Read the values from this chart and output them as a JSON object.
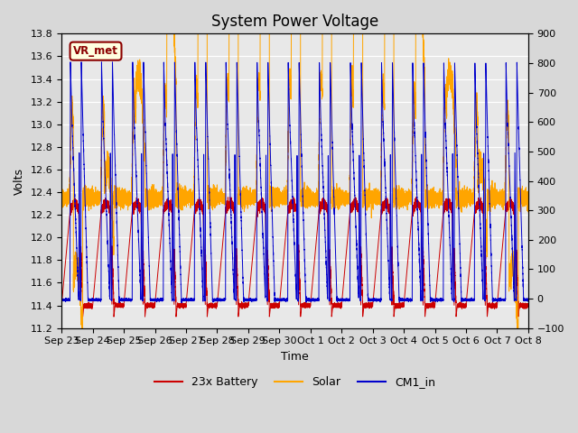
{
  "title": "System Power Voltage",
  "xlabel": "Time",
  "ylabel_left": "Volts",
  "ylim_left": [
    11.2,
    13.8
  ],
  "ylim_right": [
    -100,
    900
  ],
  "yticks_left": [
    11.2,
    11.4,
    11.6,
    11.8,
    12.0,
    12.2,
    12.4,
    12.6,
    12.8,
    13.0,
    13.2,
    13.4,
    13.6,
    13.8
  ],
  "yticks_right": [
    -100,
    0,
    100,
    200,
    300,
    400,
    500,
    600,
    700,
    800,
    900
  ],
  "xtick_labels": [
    "Sep 23",
    "Sep 24",
    "Sep 25",
    "Sep 26",
    "Sep 27",
    "Sep 28",
    "Sep 29",
    "Sep 30",
    "Oct 1",
    "Oct 2",
    "Oct 3",
    "Oct 4",
    "Oct 5",
    "Oct 6",
    "Oct 7",
    "Oct 8"
  ],
  "annotation_text": "VR_met",
  "annotation_color": "#8B0000",
  "background_color": "#D8D8D8",
  "plot_bg_color": "#E8E8E8",
  "line_colors": {
    "battery": "#CC0000",
    "solar": "#FFA500",
    "cm1": "#0000CC"
  },
  "legend_labels": [
    "23x Battery",
    "Solar",
    "CM1_in"
  ],
  "title_fontsize": 12,
  "axis_fontsize": 9,
  "tick_fontsize": 8
}
